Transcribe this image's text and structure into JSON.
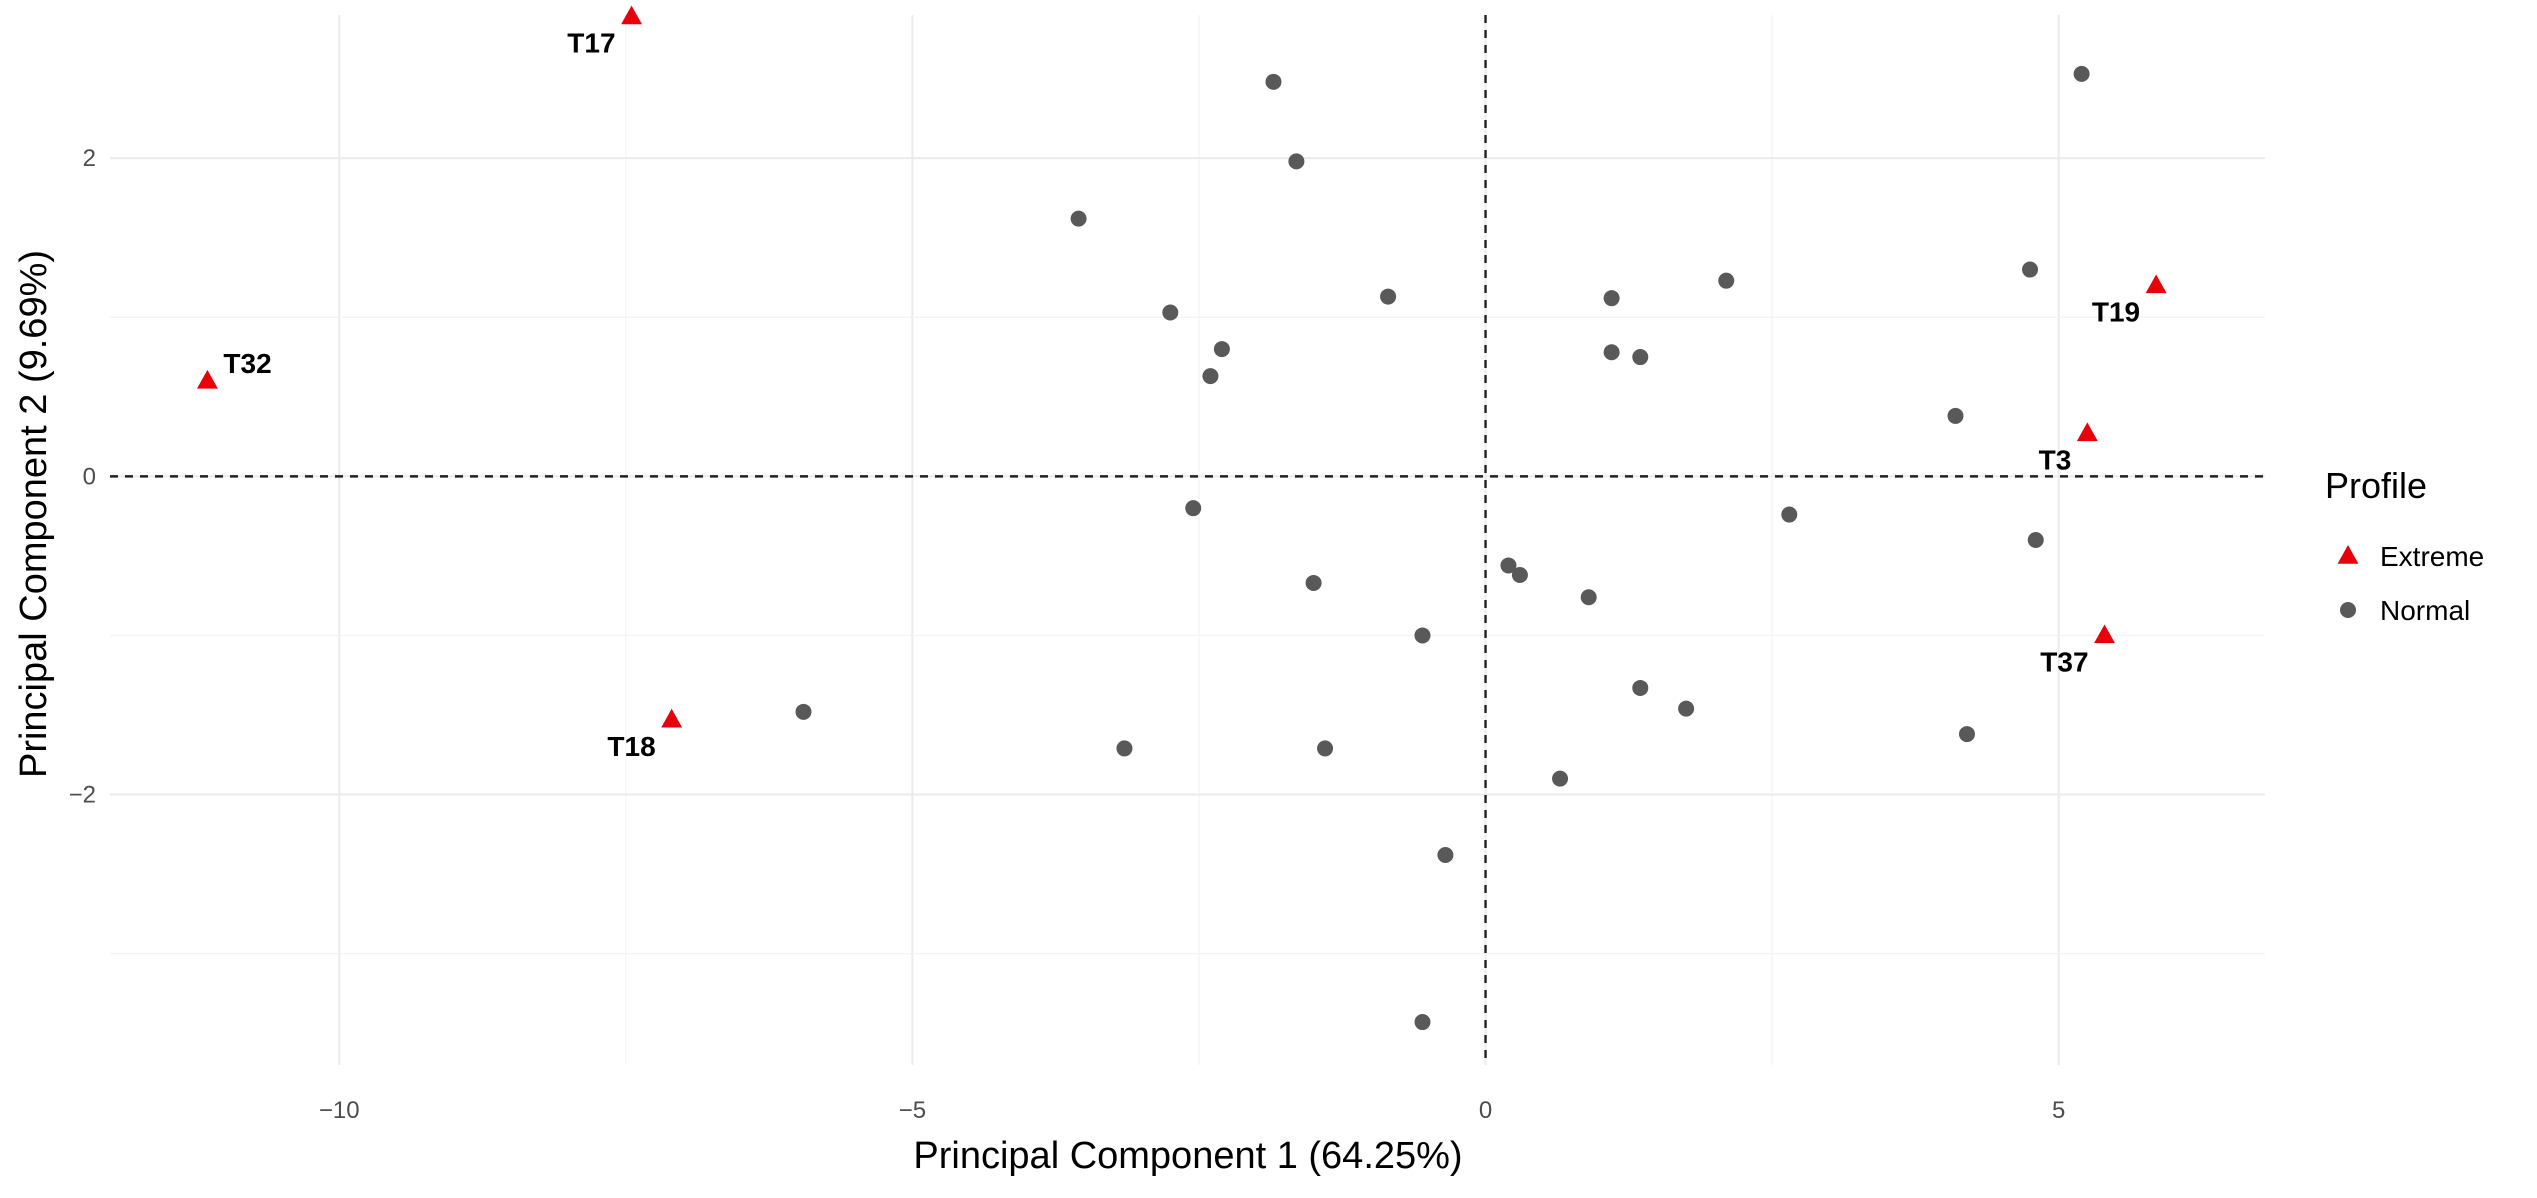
{
  "chart_data": {
    "type": "scatter",
    "xlabel": "Principal Component 1 (64.25%)",
    "ylabel": "Principal Component 2 (9.69%)",
    "xlim": [
      -12.0,
      6.8
    ],
    "ylim": [
      -3.7,
      2.9
    ],
    "x_ticks": [
      -10,
      -5,
      0,
      5
    ],
    "x_tick_labels": [
      "−10",
      "−5",
      "0",
      "5"
    ],
    "y_ticks": [
      -2,
      0,
      2
    ],
    "y_tick_labels": [
      "−2",
      "0",
      "2"
    ],
    "grid": true,
    "reference_lines": {
      "x": 0,
      "y": 0,
      "style": "dashed"
    },
    "legend": {
      "title": "Profile",
      "position": "right",
      "entries": [
        {
          "label": "Extreme",
          "shape": "triangle",
          "color": "#e8000b"
        },
        {
          "label": "Normal",
          "shape": "circle",
          "color": "#595959"
        }
      ]
    },
    "series": [
      {
        "name": "Extreme",
        "color": "#e8000b",
        "shape": "triangle",
        "points": [
          {
            "x": -7.45,
            "y": 2.89,
            "label": "T17",
            "label_pos": "below-left"
          },
          {
            "x": -11.15,
            "y": 0.6,
            "label": "T32",
            "label_pos": "upper-right"
          },
          {
            "x": -7.1,
            "y": -1.53,
            "label": "T18",
            "label_pos": "below-left"
          },
          {
            "x": 5.85,
            "y": 1.2,
            "label": "T19",
            "label_pos": "below-left"
          },
          {
            "x": 5.25,
            "y": 0.27,
            "label": "T3",
            "label_pos": "below-left"
          },
          {
            "x": 5.4,
            "y": -1.0,
            "label": "T37",
            "label_pos": "below-left"
          }
        ]
      },
      {
        "name": "Normal",
        "color": "#595959",
        "shape": "circle",
        "points": [
          {
            "x": -1.85,
            "y": 2.48
          },
          {
            "x": -1.65,
            "y": 1.98
          },
          {
            "x": -3.55,
            "y": 1.62
          },
          {
            "x": -0.85,
            "y": 1.13
          },
          {
            "x": -2.75,
            "y": 1.03
          },
          {
            "x": -2.3,
            "y": 0.8
          },
          {
            "x": -2.4,
            "y": 0.63
          },
          {
            "x": -2.55,
            "y": -0.2
          },
          {
            "x": -1.5,
            "y": -0.67
          },
          {
            "x": -0.55,
            "y": -1.0
          },
          {
            "x": -5.95,
            "y": -1.48
          },
          {
            "x": -3.15,
            "y": -1.71
          },
          {
            "x": -1.4,
            "y": -1.71
          },
          {
            "x": -0.35,
            "y": -2.38
          },
          {
            "x": -0.55,
            "y": -3.43
          },
          {
            "x": 0.2,
            "y": -0.56
          },
          {
            "x": 0.3,
            "y": -0.62
          },
          {
            "x": 0.9,
            "y": -0.76
          },
          {
            "x": 0.65,
            "y": -1.9
          },
          {
            "x": 1.35,
            "y": -1.33
          },
          {
            "x": 1.75,
            "y": -1.46
          },
          {
            "x": 1.1,
            "y": 1.12
          },
          {
            "x": 1.1,
            "y": 0.78
          },
          {
            "x": 1.35,
            "y": 0.75
          },
          {
            "x": 2.1,
            "y": 1.23
          },
          {
            "x": 2.65,
            "y": -0.24
          },
          {
            "x": 4.1,
            "y": 0.38
          },
          {
            "x": 4.2,
            "y": -1.62
          },
          {
            "x": 4.75,
            "y": 1.3
          },
          {
            "x": 4.8,
            "y": -0.4
          },
          {
            "x": 5.2,
            "y": 2.53
          }
        ]
      }
    ]
  }
}
